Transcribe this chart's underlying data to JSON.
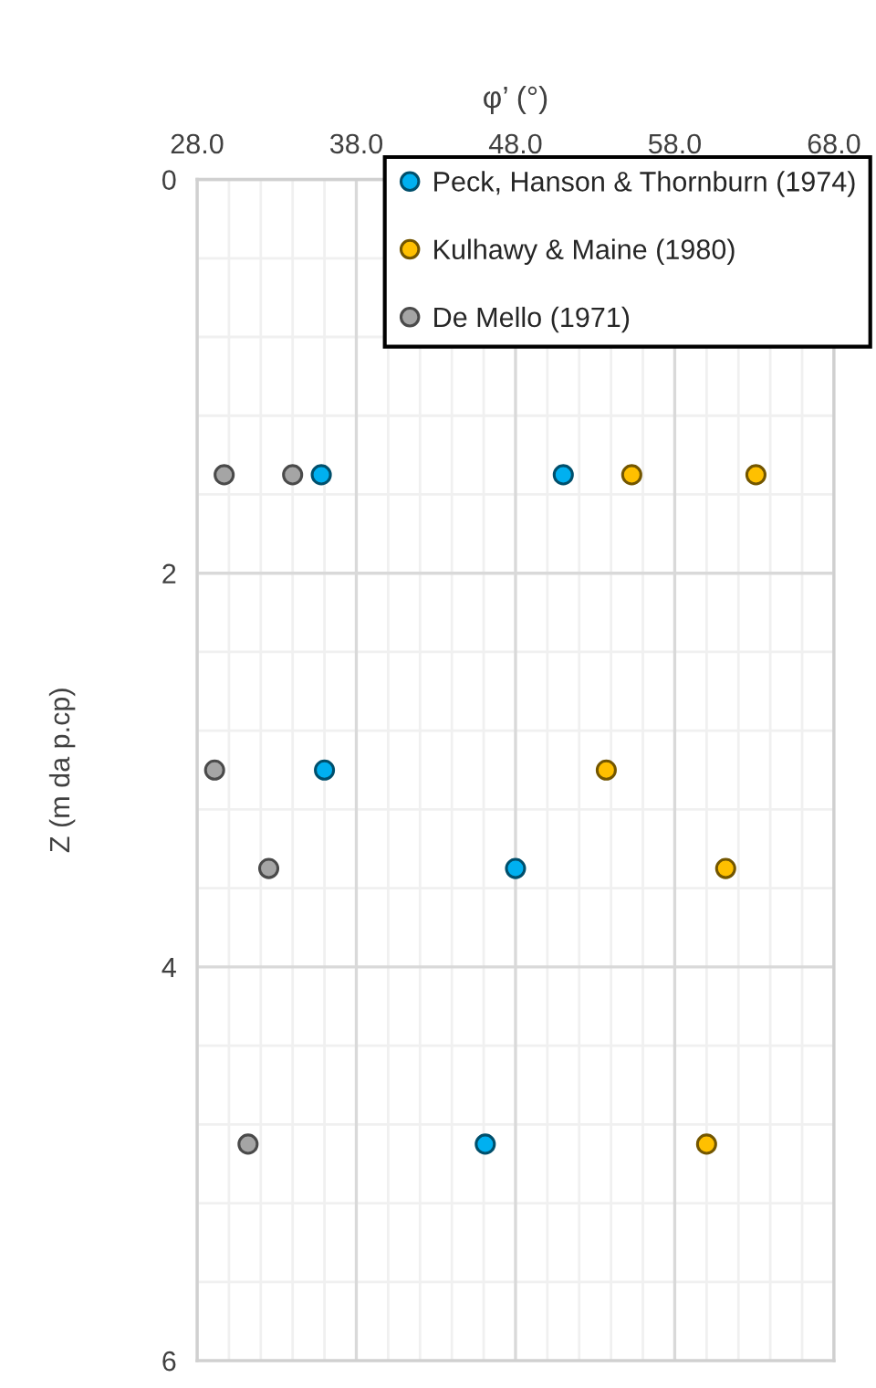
{
  "chart_data": {
    "type": "scatter",
    "xlabel": "φ’ (°)",
    "ylabel": "Z (m da p.cp)",
    "xlim": [
      28,
      68
    ],
    "xticks": [
      {
        "value": 28,
        "label": "28.0"
      },
      {
        "value": 38,
        "label": "38.0"
      },
      {
        "value": 48,
        "label": "48.0"
      },
      {
        "value": 58,
        "label": "58.0"
      },
      {
        "value": 68,
        "label": "68.0"
      }
    ],
    "ylim": [
      6,
      0
    ],
    "yticks": [
      0,
      2,
      4,
      6
    ],
    "grid": true,
    "legend": "top right",
    "marker": "circle",
    "series": [
      {
        "name": "Peck, Hanson & Thornburn (1974)",
        "color": "#00b0f0",
        "x": [
          35.8,
          51.0,
          36.0,
          48.0,
          46.1
        ],
        "values": [
          1.5,
          1.5,
          3.0,
          3.5,
          4.9
        ]
      },
      {
        "name": "Kulhawy & Maine (1980)",
        "color": "#ffc000",
        "x": [
          55.3,
          63.1,
          53.7,
          61.2,
          60.0
        ],
        "values": [
          1.5,
          1.5,
          3.0,
          3.5,
          4.9
        ]
      },
      {
        "name": "De Mello (1971)",
        "color": "#a5a5a5",
        "x": [
          29.7,
          34.0,
          29.1,
          32.5,
          31.2
        ],
        "values": [
          1.5,
          1.5,
          3.0,
          3.5,
          4.9
        ]
      }
    ]
  }
}
